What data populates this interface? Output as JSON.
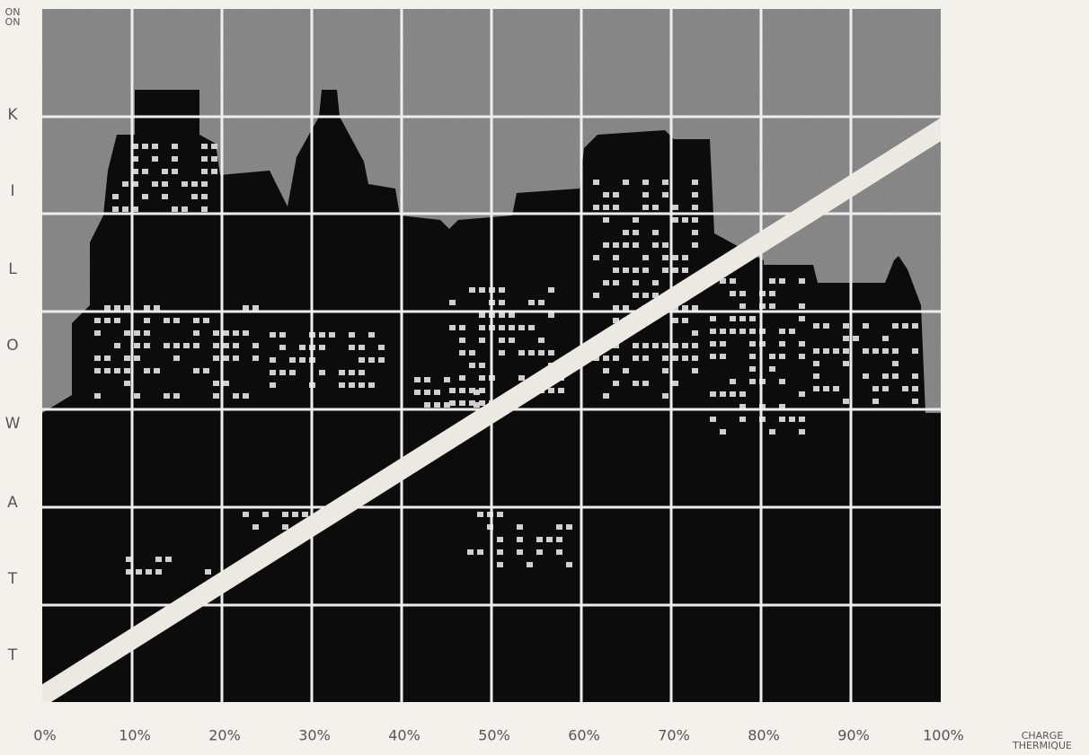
{
  "side_label": [
    "ON",
    "ON"
  ],
  "y_letters": [
    "K",
    "I",
    "L",
    "O",
    "W",
    "A",
    "T",
    "T"
  ],
  "x_labels": [
    "0%",
    "10%",
    "20%",
    "30%",
    "40%",
    "50%",
    "60%",
    "70%",
    "80%",
    "90%",
    "100%"
  ],
  "x_title": [
    "CHARGE",
    "THERMIQUE"
  ]
}
